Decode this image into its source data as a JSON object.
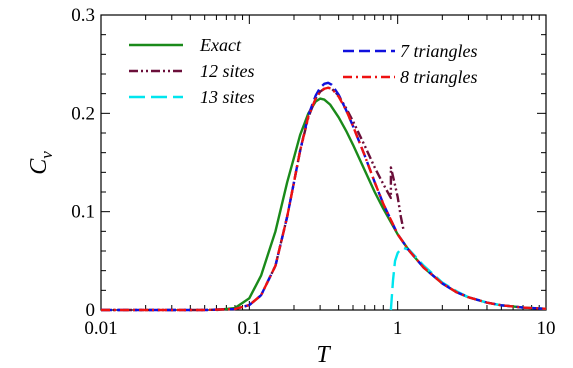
{
  "chart_data": {
    "type": "line",
    "xscale": "log",
    "xlim": [
      0.01,
      10
    ],
    "ylim": [
      0,
      0.3
    ],
    "xlabel": "T",
    "ylabel": "C",
    "ylabel_sub": "v",
    "x_ticks": [
      0.01,
      0.1,
      1,
      10
    ],
    "x_tick_labels": [
      "0.01",
      "0.1",
      "1",
      "10"
    ],
    "y_ticks": [
      0,
      0.1,
      0.2,
      0.3
    ],
    "y_tick_labels": [
      "0",
      "0.1",
      "0.2",
      "0.3"
    ],
    "grid": false,
    "legend_placement": "top (two columns)",
    "series": [
      {
        "name": "Exact",
        "color": "#1a8a1a",
        "dash": "solid",
        "x": [
          0.06,
          0.08,
          0.1,
          0.12,
          0.15,
          0.18,
          0.2,
          0.22,
          0.25,
          0.28,
          0.3,
          0.32,
          0.35,
          0.4,
          0.45,
          0.5,
          0.6,
          0.7,
          0.8,
          1.0,
          1.2,
          1.5,
          2.0,
          2.5,
          3.0,
          4.0,
          5.0,
          7.0,
          10.0
        ],
        "y": [
          0.0,
          0.002,
          0.012,
          0.035,
          0.08,
          0.13,
          0.155,
          0.178,
          0.2,
          0.212,
          0.215,
          0.214,
          0.209,
          0.196,
          0.182,
          0.168,
          0.142,
          0.12,
          0.103,
          0.077,
          0.06,
          0.043,
          0.027,
          0.018,
          0.013,
          0.0075,
          0.0048,
          0.0025,
          0.0012
        ]
      },
      {
        "name": "12 sites",
        "color": "#6b0f3a",
        "dash": "dashdotdot",
        "x": [
          0.01,
          0.05,
          0.08,
          0.1,
          0.12,
          0.15,
          0.18,
          0.2,
          0.22,
          0.25,
          0.28,
          0.3,
          0.32,
          0.34,
          0.36,
          0.4,
          0.45,
          0.5,
          0.6,
          0.7,
          0.8,
          0.9,
          0.9,
          0.95,
          1.0,
          1.05,
          1.1
        ],
        "y": [
          0.0,
          0.0,
          0.001,
          0.005,
          0.015,
          0.045,
          0.095,
          0.13,
          0.162,
          0.196,
          0.215,
          0.222,
          0.225,
          0.226,
          0.225,
          0.218,
          0.205,
          0.192,
          0.167,
          0.145,
          0.128,
          0.114,
          0.145,
          0.13,
          0.115,
          0.095,
          0.08
        ]
      },
      {
        "name": "13 sites",
        "color": "#00e5ee",
        "dash": "longdash",
        "x": [
          0.9,
          0.93,
          0.96,
          1.0,
          1.05,
          1.1,
          1.2,
          1.5,
          2.0,
          2.5,
          3.0,
          4.0,
          5.0,
          7.0,
          10.0
        ],
        "y": [
          0.0,
          0.03,
          0.05,
          0.058,
          0.062,
          0.063,
          0.061,
          0.045,
          0.028,
          0.019,
          0.013,
          0.0075,
          0.0048,
          0.0025,
          0.0012
        ]
      },
      {
        "name": "7 triangles",
        "color": "#1010dd",
        "dash": "dash",
        "x": [
          0.01,
          0.05,
          0.08,
          0.1,
          0.12,
          0.15,
          0.18,
          0.2,
          0.22,
          0.25,
          0.28,
          0.3,
          0.32,
          0.34,
          0.36,
          0.4,
          0.45,
          0.5,
          0.6,
          0.7,
          0.8,
          1.0,
          1.2,
          1.5,
          2.0,
          2.5,
          3.0,
          4.0,
          5.0,
          7.0,
          10.0
        ],
        "y": [
          0.0,
          0.0,
          0.001,
          0.005,
          0.015,
          0.045,
          0.095,
          0.13,
          0.162,
          0.198,
          0.218,
          0.226,
          0.23,
          0.231,
          0.229,
          0.219,
          0.203,
          0.187,
          0.157,
          0.13,
          0.108,
          0.077,
          0.06,
          0.043,
          0.027,
          0.018,
          0.013,
          0.0075,
          0.0048,
          0.0025,
          0.0012
        ]
      },
      {
        "name": "8 triangles",
        "color": "#ee1111",
        "dash": "dashdot",
        "x": [
          0.01,
          0.05,
          0.08,
          0.1,
          0.12,
          0.15,
          0.18,
          0.2,
          0.22,
          0.25,
          0.28,
          0.3,
          0.32,
          0.34,
          0.36,
          0.4,
          0.45,
          0.5,
          0.6,
          0.7,
          0.8,
          1.0,
          1.2,
          1.5,
          2.0,
          2.5,
          3.0,
          4.0,
          5.0,
          7.0,
          10.0
        ],
        "y": [
          0.0,
          0.0,
          0.001,
          0.005,
          0.015,
          0.045,
          0.095,
          0.13,
          0.162,
          0.197,
          0.215,
          0.222,
          0.225,
          0.226,
          0.225,
          0.217,
          0.203,
          0.187,
          0.157,
          0.13,
          0.108,
          0.077,
          0.06,
          0.043,
          0.027,
          0.018,
          0.013,
          0.0075,
          0.0048,
          0.0025,
          0.0012
        ]
      }
    ]
  }
}
